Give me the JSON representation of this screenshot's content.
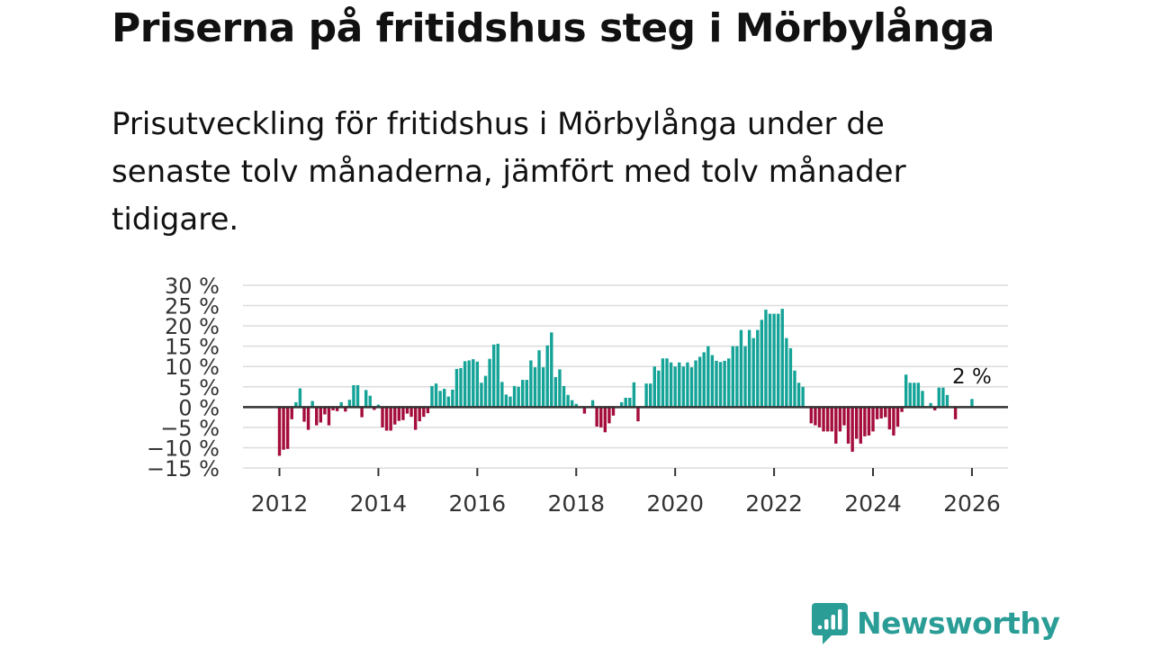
{
  "header": {
    "title": "Priserna på fritidshus steg i Mörbylånga",
    "subtitle": "Prisutveckling för fritidshus i Mörbylånga under de senaste tolv månaderna, jämfört med tolv månader tidigare."
  },
  "brand": {
    "name": "Newsworthy",
    "icon": "newsworthy-logo-icon",
    "color": "#2a9d96"
  },
  "chart_data": {
    "type": "bar",
    "title": "",
    "xlabel": "",
    "ylabel": "",
    "y_unit": "%",
    "ylim": [
      -15,
      30
    ],
    "y_ticks": [
      {
        "value": 30,
        "label": "30 %"
      },
      {
        "value": 25,
        "label": "25 %"
      },
      {
        "value": 20,
        "label": "20 %"
      },
      {
        "value": 15,
        "label": "15 %"
      },
      {
        "value": 10,
        "label": "10 %"
      },
      {
        "value": 5,
        "label": "5 %"
      },
      {
        "value": 0,
        "label": "0 %"
      },
      {
        "value": -5,
        "label": "−5 %"
      },
      {
        "value": -10,
        "label": "−10 %"
      },
      {
        "value": -15,
        "label": "−15 %"
      }
    ],
    "x_ticks": [
      "2012",
      "2014",
      "2016",
      "2018",
      "2020",
      "2022",
      "2024",
      "2026"
    ],
    "x_range": [
      "2011-01",
      "2026-07"
    ],
    "grid": true,
    "colors": {
      "positive": "#15a398",
      "negative": "#a50d3c",
      "zero_line": "#333333",
      "grid": "#dcdcdc"
    },
    "annotation": {
      "text": "2 %",
      "month": "2026-01"
    },
    "series": [
      {
        "months": [
          "2012-01",
          "2012-02",
          "2012-03",
          "2012-04",
          "2012-05",
          "2012-06",
          "2012-07",
          "2012-08",
          "2012-09",
          "2012-10",
          "2012-11",
          "2012-12",
          "2013-01",
          "2013-02",
          "2013-03",
          "2013-04",
          "2013-05",
          "2013-06",
          "2013-07",
          "2013-08",
          "2013-09",
          "2013-10",
          "2013-11",
          "2013-12",
          "2014-01",
          "2014-02",
          "2014-03",
          "2014-04",
          "2014-05",
          "2014-06",
          "2014-07",
          "2014-08",
          "2014-09",
          "2014-10",
          "2014-11",
          "2014-12",
          "2015-01",
          "2015-02",
          "2015-03",
          "2015-04",
          "2015-05",
          "2015-06",
          "2015-07",
          "2015-08",
          "2015-09",
          "2015-10",
          "2015-11",
          "2015-12",
          "2016-01",
          "2016-02",
          "2016-03",
          "2016-04",
          "2016-05",
          "2016-06",
          "2016-07",
          "2016-08",
          "2016-09",
          "2016-10",
          "2016-11",
          "2016-12",
          "2017-01",
          "2017-02",
          "2017-03",
          "2017-04",
          "2017-05",
          "2017-06",
          "2017-07",
          "2017-08",
          "2017-09",
          "2017-10",
          "2017-11",
          "2017-12",
          "2018-01",
          "2018-02",
          "2018-03",
          "2018-04",
          "2018-05",
          "2018-06",
          "2018-07",
          "2018-08",
          "2018-09",
          "2018-10",
          "2018-11",
          "2018-12",
          "2019-01",
          "2019-02",
          "2019-03",
          "2019-04",
          "2019-05",
          "2019-06",
          "2019-07",
          "2019-08",
          "2019-09",
          "2019-10",
          "2019-11",
          "2019-12",
          "2020-01",
          "2020-02",
          "2020-03",
          "2020-04",
          "2020-05",
          "2020-06",
          "2020-07",
          "2020-08",
          "2020-09",
          "2020-10",
          "2020-11",
          "2020-12",
          "2021-01",
          "2021-02",
          "2021-03",
          "2021-04",
          "2021-05",
          "2021-06",
          "2021-07",
          "2021-08",
          "2021-09",
          "2021-10",
          "2021-11",
          "2021-12",
          "2022-01",
          "2022-02",
          "2022-03",
          "2022-04",
          "2022-05",
          "2022-06",
          "2022-07",
          "2022-08",
          "2022-09",
          "2022-10",
          "2022-11",
          "2022-12",
          "2023-01",
          "2023-02",
          "2023-03",
          "2023-04",
          "2023-05",
          "2023-06",
          "2023-07",
          "2023-08",
          "2023-09",
          "2023-10",
          "2023-11",
          "2023-12",
          "2024-01",
          "2024-02",
          "2024-03",
          "2024-04",
          "2024-05",
          "2024-06",
          "2024-07",
          "2024-08",
          "2024-09",
          "2024-10",
          "2024-11",
          "2024-12",
          "2025-01",
          "2025-02",
          "2025-03",
          "2025-04",
          "2025-05",
          "2025-06",
          "2025-07",
          "2025-08",
          "2025-09",
          "2025-10",
          "2025-11",
          "2025-12",
          "2026-01"
        ],
        "values": [
          -12,
          -10.5,
          -10.3,
          -3,
          1.2,
          4.6,
          -3.6,
          -5.6,
          1.5,
          -4.5,
          -3.8,
          -1.8,
          -4.5,
          -0.8,
          -1,
          1.2,
          -1.1,
          1.8,
          5.4,
          5.4,
          -2.5,
          4.2,
          2.8,
          -0.7,
          0.6,
          -5,
          -5.8,
          -5.8,
          -4.3,
          -3.4,
          -3.2,
          -1.6,
          -2.4,
          -5.6,
          -3.5,
          -2.4,
          -1.5,
          5.2,
          5.8,
          4,
          4.5,
          2.6,
          4.3,
          9.4,
          9.6,
          11.3,
          11.5,
          11.8,
          11.2,
          6,
          7.7,
          11.9,
          15.4,
          15.6,
          6.2,
          3.1,
          2.6,
          5.2,
          5,
          6.7,
          6.7,
          11.5,
          9.8,
          14,
          9.8,
          15.2,
          18.4,
          7.4,
          9.3,
          5.2,
          3,
          1.7,
          0.8,
          0,
          -1.6,
          0,
          1.7,
          -4.8,
          -5,
          -6.2,
          -4,
          -2.1,
          0,
          1.2,
          2.3,
          2.3,
          6.1,
          -3.5,
          0,
          5.8,
          5.8,
          10,
          9,
          12,
          12,
          11,
          10,
          11,
          10,
          11,
          9.8,
          11.5,
          12.4,
          13.5,
          15,
          12.8,
          11.4,
          11.1,
          11.4,
          12,
          15,
          15,
          19,
          15,
          19,
          17,
          19,
          21.5,
          24,
          23,
          23,
          23,
          24.2,
          17,
          14.5,
          9,
          6,
          5,
          0,
          -4,
          -4.5,
          -5,
          -6,
          -6,
          -6,
          -9,
          -6,
          -4.5,
          -9,
          -11,
          -7.8,
          -9,
          -7.2,
          -7,
          -6,
          -3,
          -2.8,
          -2.5,
          -5.5,
          -7,
          -4.8,
          -1.2,
          8,
          6,
          6,
          6,
          4,
          0,
          1,
          -0.8,
          4.8,
          4.8,
          3,
          0,
          -3,
          0,
          0,
          0,
          2
        ]
      }
    ]
  }
}
